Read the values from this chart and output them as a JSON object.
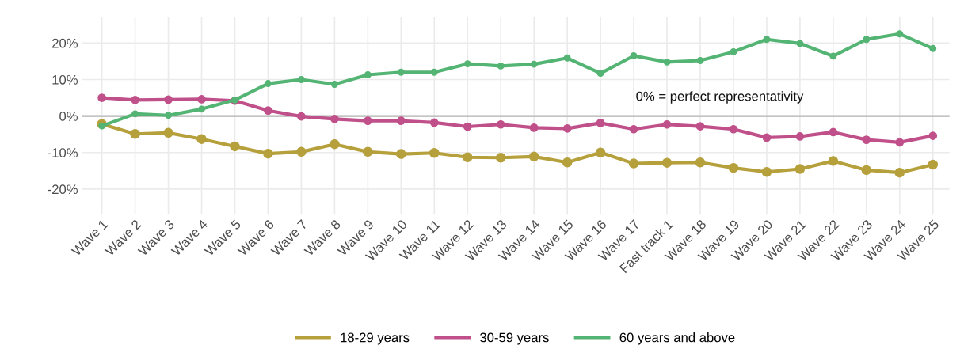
{
  "chart_data": {
    "type": "line",
    "categories": [
      "Wave 1",
      "Wave 2",
      "Wave 3",
      "Wave 4",
      "Wave 5",
      "Wave 6",
      "Wave 7",
      "Wave 8",
      "Wave 9",
      "Wave 10",
      "Wave 11",
      "Wave 12",
      "Wave 13",
      "Wave 14",
      "Wave 15",
      "Wave 16",
      "Wave 17",
      "Fast track 1",
      "Wave 18",
      "Wave 19",
      "Wave 20",
      "Wave 21",
      "Wave 22",
      "Wave 23",
      "Wave 24",
      "Wave 25"
    ],
    "series": [
      {
        "name": "18-29 years",
        "color": "#b5a03c",
        "values": [
          -2.2,
          -4.9,
          -4.6,
          -6.3,
          -8.3,
          -10.3,
          -9.8,
          -7.7,
          -9.8,
          -10.4,
          -10.1,
          -11.3,
          -11.4,
          -11.1,
          -12.7,
          -10.0,
          -13.0,
          -12.8,
          -12.7,
          -14.2,
          -15.3,
          -14.5,
          -12.3,
          -14.8,
          -15.5,
          -13.3
        ]
      },
      {
        "name": "30-59 years",
        "color": "#c0508a",
        "values": [
          5.0,
          4.4,
          4.5,
          4.6,
          4.2,
          1.5,
          -0.1,
          -0.8,
          -1.3,
          -1.3,
          -1.8,
          -2.9,
          -2.3,
          -3.2,
          -3.4,
          -1.9,
          -3.6,
          -2.3,
          -2.8,
          -3.6,
          -5.9,
          -5.6,
          -4.4,
          -6.5,
          -7.2,
          -5.4
        ]
      },
      {
        "name": "60 years and above",
        "color": "#54b474",
        "values": [
          -2.7,
          0.6,
          0.2,
          1.9,
          4.4,
          8.9,
          10.0,
          8.7,
          11.3,
          12.0,
          12.0,
          14.3,
          13.7,
          14.2,
          15.9,
          11.7,
          16.5,
          14.8,
          15.2,
          17.6,
          21.0,
          19.9,
          16.4,
          21.0,
          22.5,
          18.5
        ]
      }
    ],
    "ylim": [
      -27,
      27
    ],
    "yticks": [
      {
        "value": -20,
        "label": "-20%"
      },
      {
        "value": -10,
        "label": "-10%"
      },
      {
        "value": 0,
        "label": "0%"
      },
      {
        "value": 10,
        "label": "10%"
      },
      {
        "value": 20,
        "label": "20%"
      }
    ],
    "ref_lines": [
      {
        "axis": "y",
        "value": 0,
        "color": "#b3b3b3"
      }
    ],
    "annotations": [
      "0% = perfect representativity"
    ],
    "grid": true,
    "legend": "bottom",
    "marker": "circle",
    "line_style": "solid"
  }
}
